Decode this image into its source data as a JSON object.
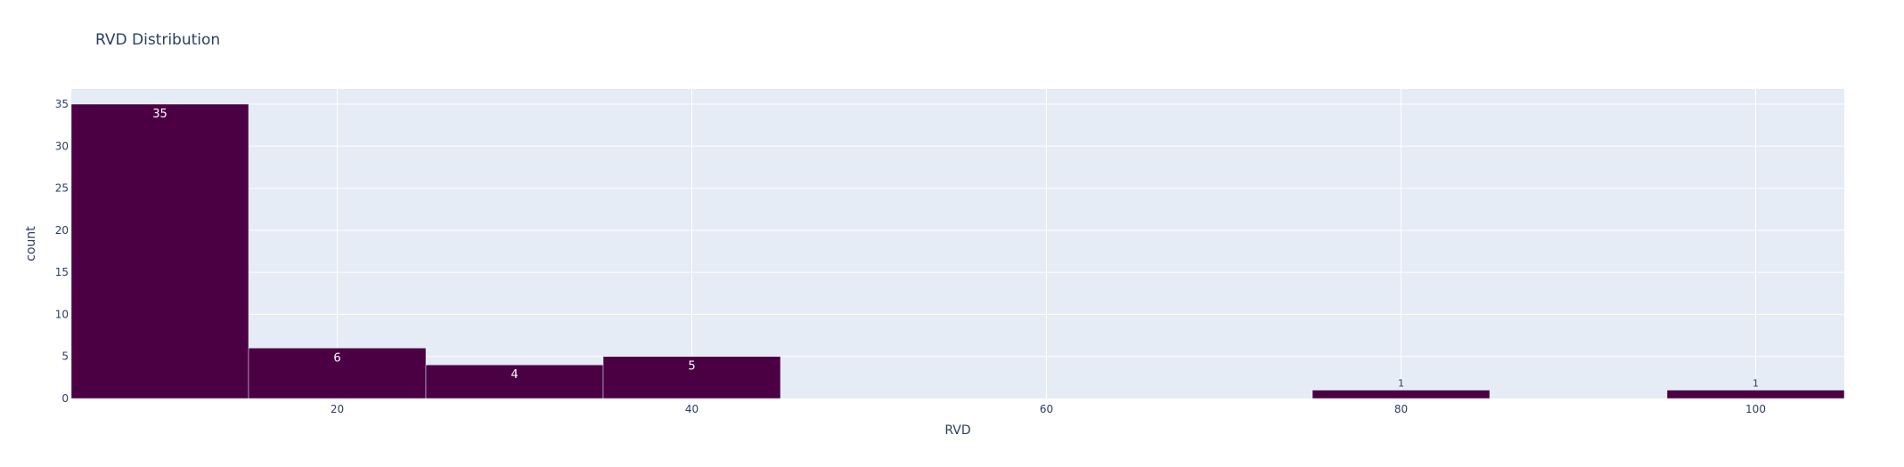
{
  "colors": {
    "bar": "#4c0044",
    "plot_bg": "#e5ecf6",
    "grid": "#ffffff",
    "text": "#2a3f5f",
    "paper_bg": "#ffffff"
  },
  "chart_data": {
    "type": "bar",
    "title": "RVD Distribution",
    "xlabel": "RVD",
    "ylabel": "count",
    "xlim": [
      5,
      105
    ],
    "ylim": [
      0,
      36.8
    ],
    "grid": true,
    "x_ticks": [
      20,
      40,
      60,
      80,
      100
    ],
    "y_ticks": [
      0,
      5,
      10,
      15,
      20,
      25,
      30,
      35
    ],
    "bin_width": 10,
    "bins": [
      {
        "x": 10,
        "value": 35,
        "label": "35"
      },
      {
        "x": 20,
        "value": 6,
        "label": "6"
      },
      {
        "x": 30,
        "value": 4,
        "label": "4"
      },
      {
        "x": 40,
        "value": 5,
        "label": "5"
      },
      {
        "x": 80,
        "value": 1,
        "label": "1"
      },
      {
        "x": 100,
        "value": 1,
        "label": "1"
      }
    ]
  }
}
